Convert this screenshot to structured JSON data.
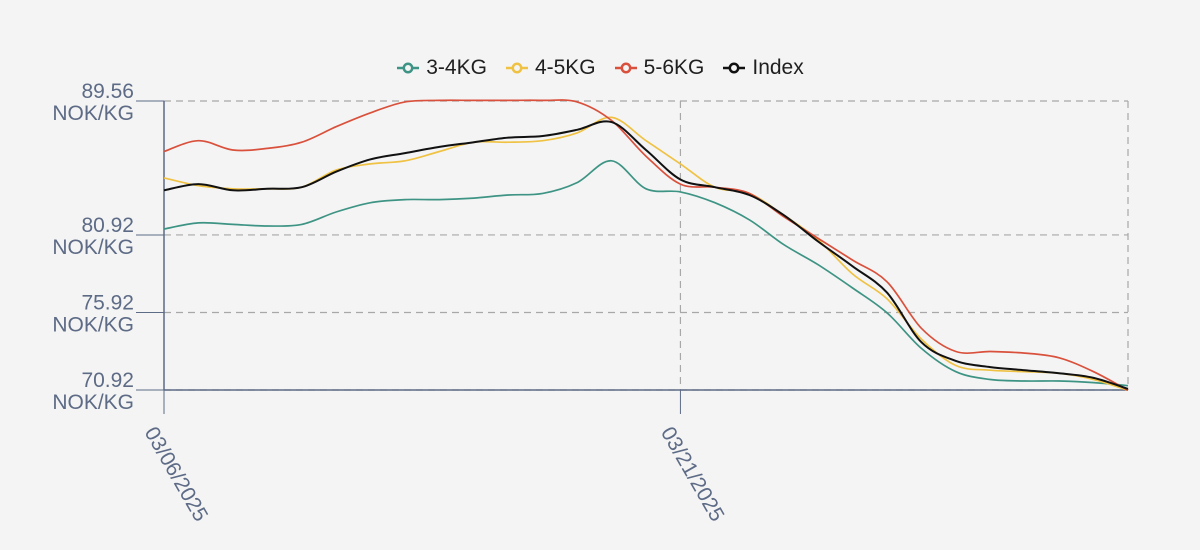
{
  "chart_data": {
    "type": "line",
    "unit": "NOK/KG",
    "x": [
      "03/06/2025",
      "03/07/2025",
      "03/08/2025",
      "03/09/2025",
      "03/10/2025",
      "03/11/2025",
      "03/12/2025",
      "03/13/2025",
      "03/14/2025",
      "03/15/2025",
      "03/16/2025",
      "03/17/2025",
      "03/18/2025",
      "03/19/2025",
      "03/20/2025",
      "03/21/2025",
      "03/22/2025",
      "03/23/2025",
      "03/24/2025",
      "03/25/2025",
      "03/26/2025",
      "03/27/2025",
      "03/28/2025",
      "03/29/2025",
      "03/30/2025",
      "03/31/2025",
      "04/01/2025",
      "04/02/2025",
      "04/03/2025"
    ],
    "x_ticks": [
      "03/06/2025",
      "03/21/2025"
    ],
    "y_ticks": [
      {
        "value": 70.92,
        "label": "70.92",
        "unit_label": "NOK/KG"
      },
      {
        "value": 75.92,
        "label": "75.92",
        "unit_label": "NOK/KG"
      },
      {
        "value": 80.92,
        "label": "80.92",
        "unit_label": "NOK/KG"
      },
      {
        "value": 89.56,
        "label": "89.56",
        "unit_label": "NOK/KG"
      }
    ],
    "ylim": [
      70.92,
      89.56
    ],
    "grid": true,
    "legend_position": "top-center",
    "series": [
      {
        "name": "3-4KG",
        "color": "#3e9484",
        "values": [
          81.3,
          81.7,
          81.6,
          81.5,
          81.6,
          82.4,
          83.0,
          83.2,
          83.2,
          83.3,
          83.5,
          83.6,
          84.3,
          85.7,
          83.9,
          83.7,
          83.0,
          81.9,
          80.3,
          79.0,
          77.5,
          75.9,
          73.6,
          72.1,
          71.6,
          71.5,
          71.5,
          71.4,
          71.2
        ]
      },
      {
        "name": "4-5KG",
        "color": "#f0c243",
        "values": [
          84.6,
          84.1,
          83.9,
          83.9,
          84.0,
          85.1,
          85.5,
          85.7,
          86.3,
          86.9,
          86.9,
          87.0,
          87.5,
          88.5,
          87.0,
          85.5,
          84.0,
          83.6,
          82.2,
          80.6,
          78.4,
          76.8,
          74.2,
          72.5,
          72.2,
          72.1,
          72.0,
          71.6,
          70.9
        ]
      },
      {
        "name": "5-6KG",
        "color": "#d9513c",
        "values": [
          86.3,
          87.0,
          86.4,
          86.5,
          86.9,
          87.9,
          88.8,
          89.5,
          89.6,
          89.6,
          89.6,
          89.6,
          89.5,
          88.3,
          86.0,
          84.2,
          84.0,
          83.6,
          82.1,
          80.7,
          79.3,
          77.9,
          74.9,
          73.4,
          73.4,
          73.3,
          73.0,
          72.1,
          70.9
        ]
      },
      {
        "name": "Index",
        "color": "#111111",
        "values": [
          83.8,
          84.2,
          83.8,
          83.9,
          84.0,
          85.0,
          85.8,
          86.2,
          86.6,
          86.9,
          87.2,
          87.3,
          87.7,
          88.2,
          86.4,
          84.5,
          84.0,
          83.5,
          82.2,
          80.5,
          78.9,
          77.2,
          74.0,
          72.8,
          72.4,
          72.2,
          72.0,
          71.7,
          71.0
        ]
      }
    ]
  }
}
